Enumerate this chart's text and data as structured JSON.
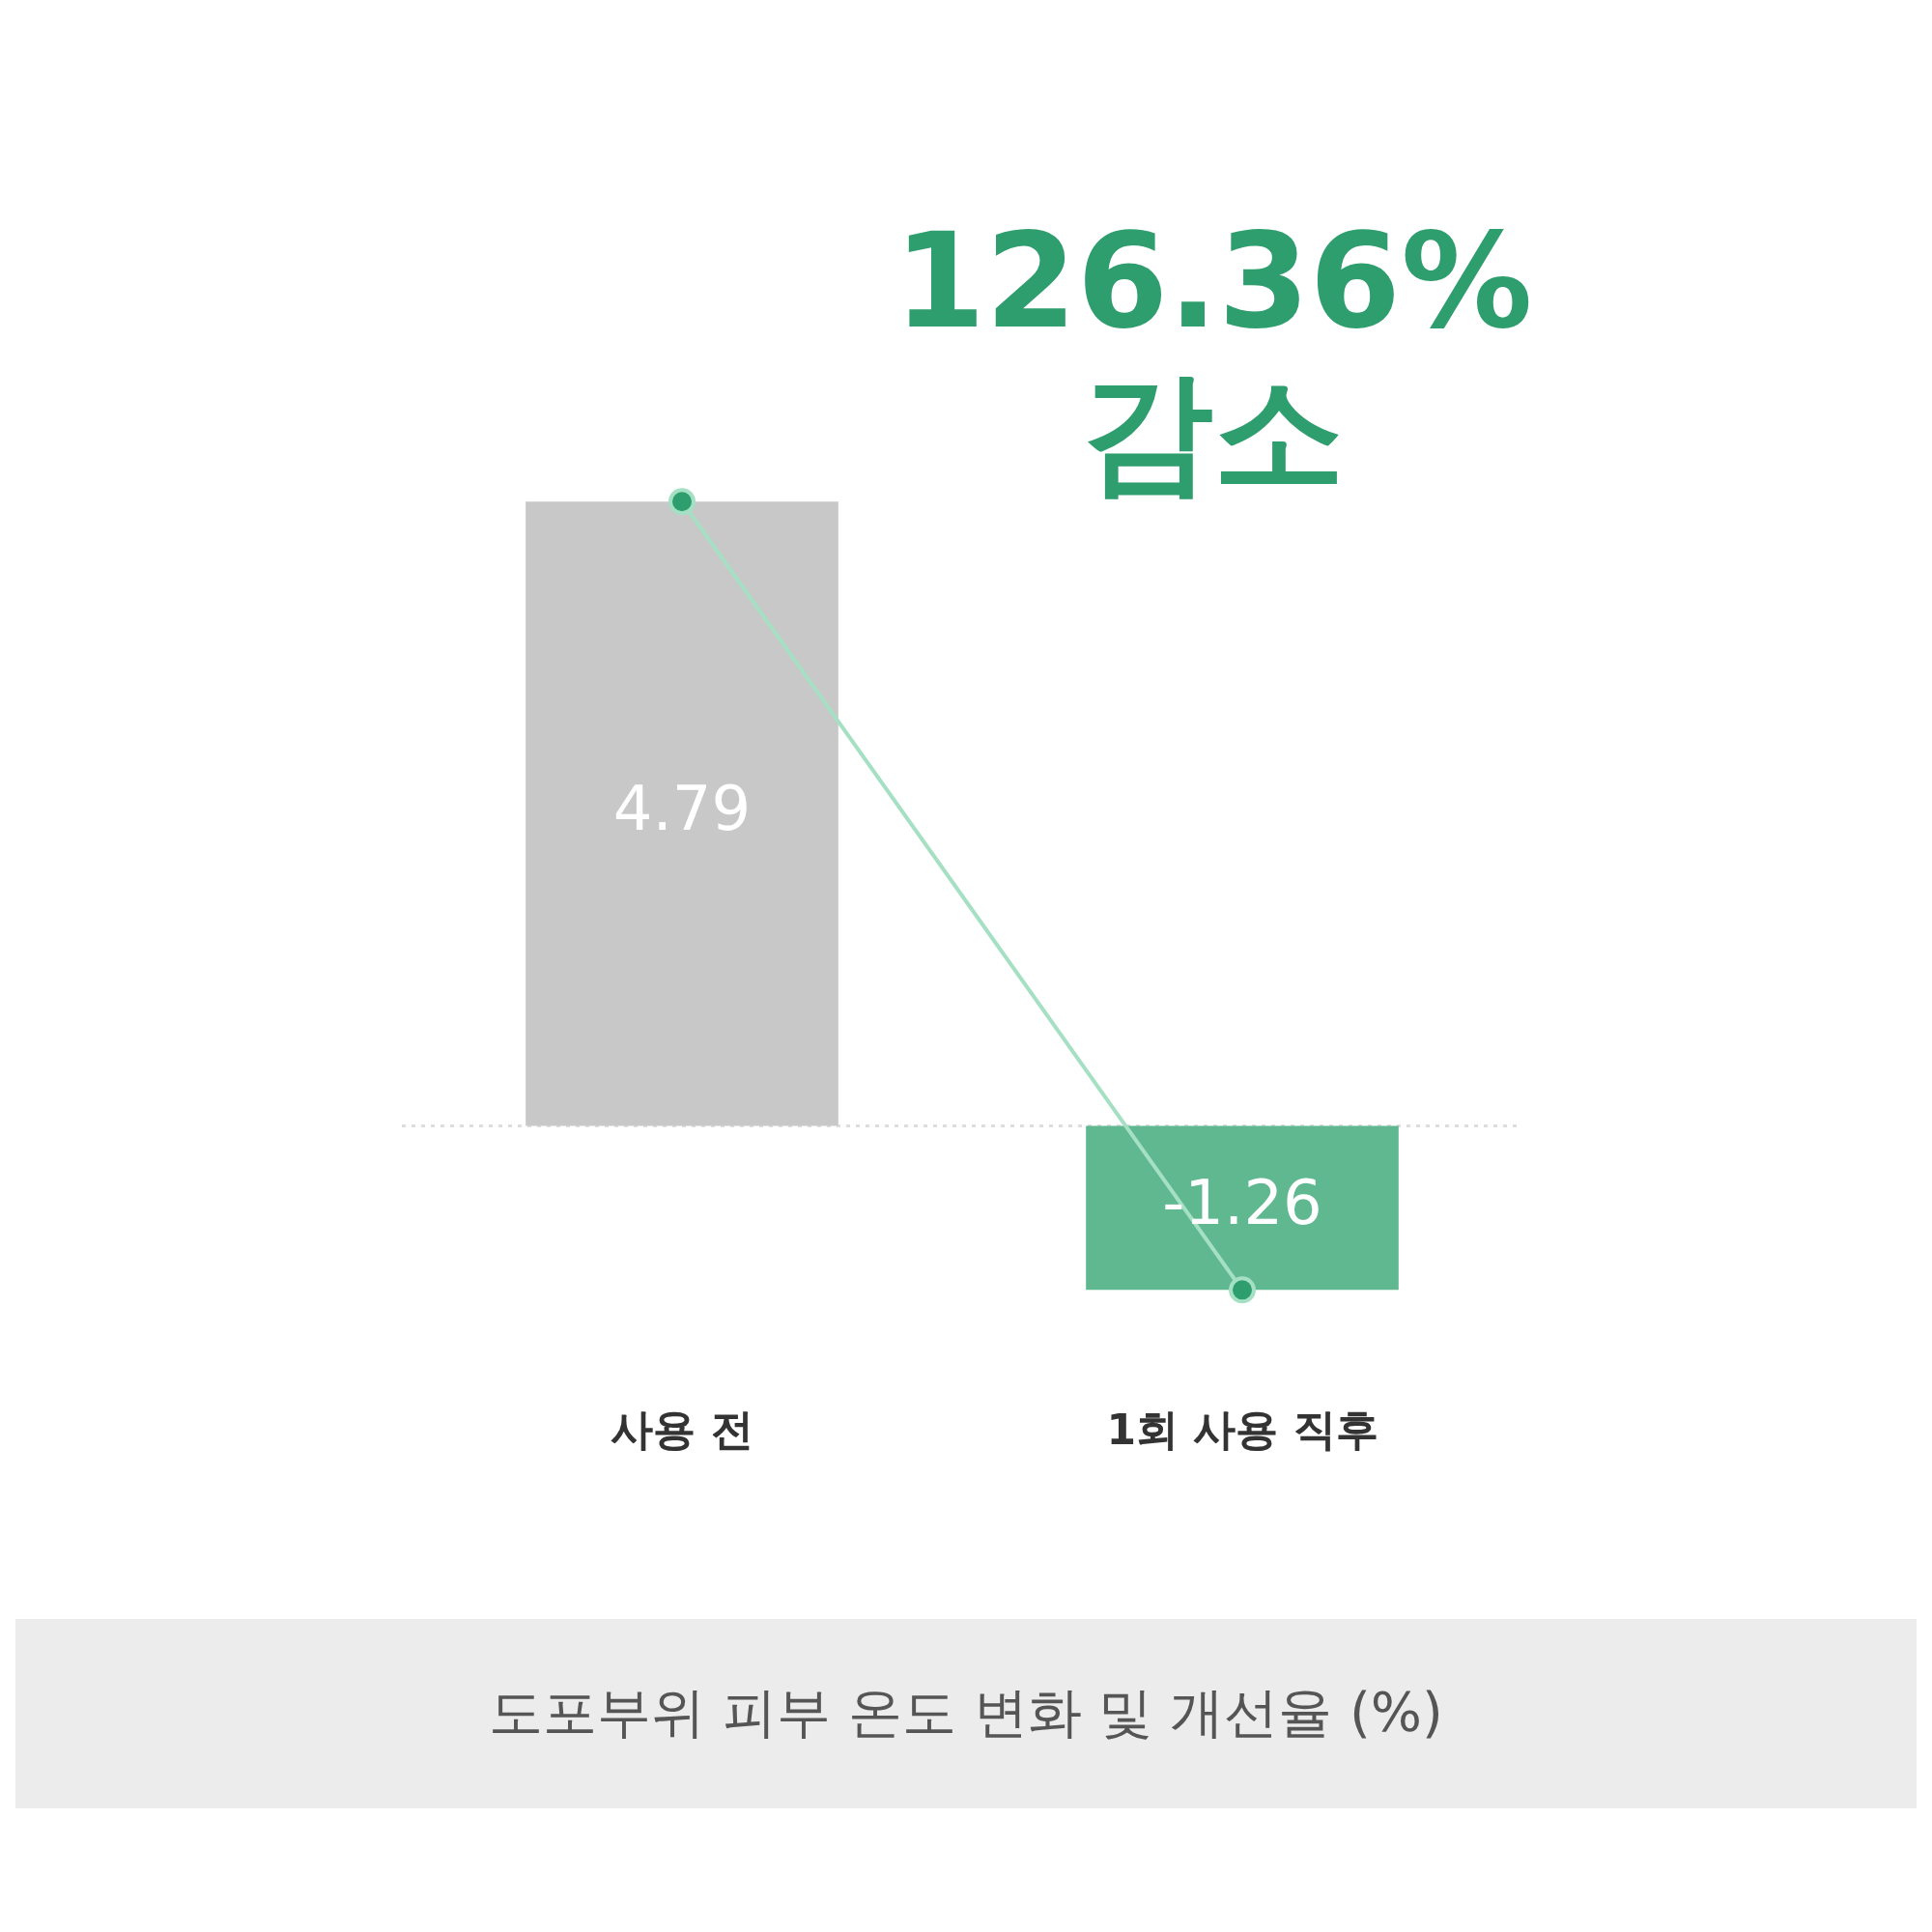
{
  "chart_data": {
    "type": "bar",
    "title": "도포부위 피부 온도 변화 및 개선율 (%)",
    "categories": [
      "사용 전",
      "1회 사용 직후"
    ],
    "series": [
      {
        "colors": [
          "#c8c8c8",
          "#5fb890"
        ],
        "values": [
          4.79,
          -1.26
        ],
        "value_labels": [
          "4.79",
          "-1.26"
        ]
      },
      {
        "type": "line",
        "color": "#a6e0c4",
        "values": [
          4.79,
          -1.26
        ],
        "marker": "circle"
      }
    ],
    "legend": false,
    "grid": false,
    "ref_lines": [
      {
        "axis": "y",
        "value": 0,
        "color": "#dddddd",
        "line_style": "dotted"
      }
    ],
    "annotations": [
      "126.36% 감소"
    ]
  }
}
